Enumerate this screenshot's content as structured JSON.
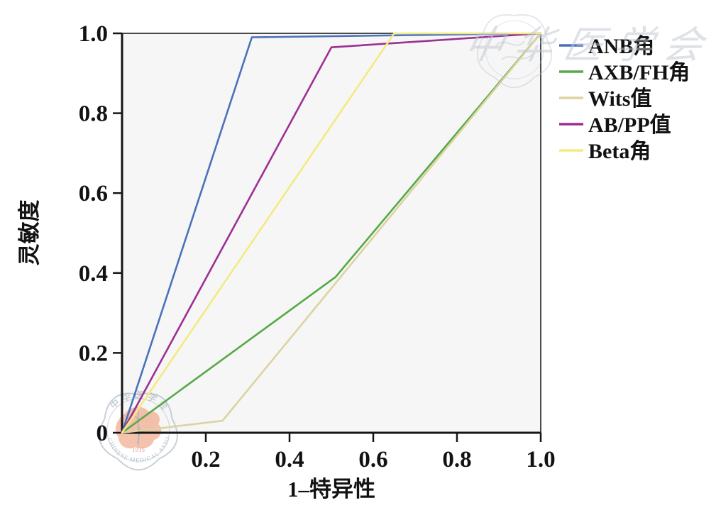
{
  "chart_data": {
    "type": "line",
    "subtype": "roc-curves",
    "title": "",
    "xlabel": "1–特异性",
    "ylabel": "灵敏度",
    "xlim": [
      0,
      1.0
    ],
    "ylim": [
      0,
      1.0
    ],
    "grid": false,
    "plot_background": "#f6f6f6",
    "legend_position": "right-top-outside",
    "x_ticks": {
      "values": [
        0.2,
        0.4,
        0.6,
        0.8,
        1.0
      ],
      "labels": [
        "0.2",
        "0.4",
        "0.6",
        "0.8",
        "1.0"
      ]
    },
    "y_ticks": {
      "values": [
        0,
        0.2,
        0.4,
        0.6,
        0.8,
        1.0
      ],
      "labels": [
        "0",
        "0.2",
        "0.4",
        "0.6",
        "0.8",
        "1.0"
      ]
    },
    "series": [
      {
        "name": "ANB角",
        "color": "#4a72bc",
        "points": [
          [
            0,
            0
          ],
          [
            0.31,
            0.99
          ],
          [
            1.0,
            1.0
          ]
        ]
      },
      {
        "name": "AXB/FH角",
        "color": "#56a946",
        "points": [
          [
            0,
            0
          ],
          [
            0.51,
            0.39
          ],
          [
            1.0,
            1.0
          ]
        ]
      },
      {
        "name": "Wits值",
        "color": "#dcd3a0",
        "points": [
          [
            0,
            0
          ],
          [
            0.24,
            0.03
          ],
          [
            1.0,
            1.0
          ]
        ]
      },
      {
        "name": "AB/PP值",
        "color": "#9d2f94",
        "points": [
          [
            0,
            0
          ],
          [
            0.5,
            0.965
          ],
          [
            1.0,
            1.0
          ]
        ]
      },
      {
        "name": "Beta角",
        "color": "#f3eb80",
        "points": [
          [
            0,
            0
          ],
          [
            0.65,
            1.0
          ],
          [
            1.0,
            1.0
          ]
        ]
      }
    ]
  },
  "colors": {
    "axis": "#161616",
    "frame": "#4a4a4a",
    "text": "#121212",
    "watermark_gray": "#bfc7d1",
    "watermark_text": "#aab4bf",
    "watermark_orange": "#f0a080",
    "watermark_red": "#d9897b"
  },
  "watermarks": {
    "seal_arc_top_text": "中华医学会",
    "seal_arc_bottom_text": "CHINESE MEDICAL ASSOCIATION",
    "seal_year": "1915",
    "calligraphy_text": "中华医学会"
  }
}
